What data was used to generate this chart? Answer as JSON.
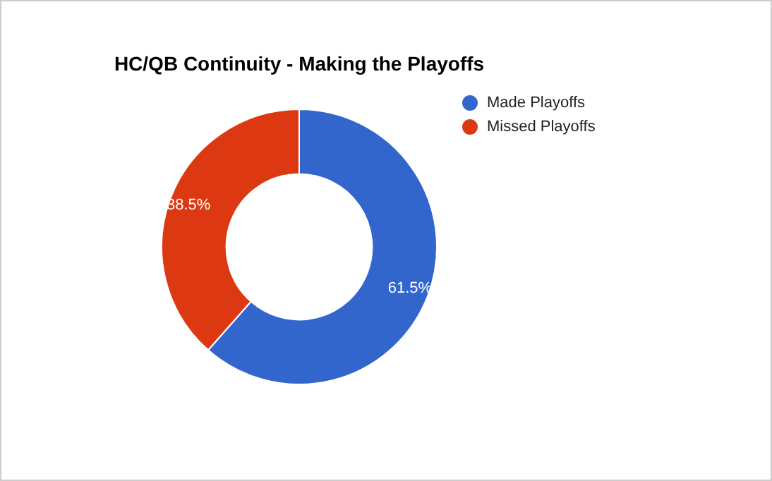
{
  "chart_data": {
    "type": "donut",
    "title": "HC/QB Continuity - Making the Playoffs",
    "categories": [
      "Made Playoffs",
      "Missed Playoffs"
    ],
    "values": [
      61.5,
      38.5
    ],
    "value_labels": [
      "61.5%",
      "38.5%"
    ],
    "colors": [
      "#3366cc",
      "#dc3912"
    ],
    "legend": "top right"
  }
}
